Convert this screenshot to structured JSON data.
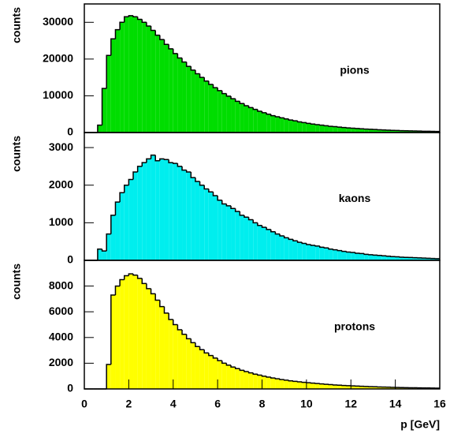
{
  "chart_data": [
    {
      "type": "histogram",
      "ylabel": "counts",
      "label": "pions",
      "color": "#00dd00",
      "bins": [
        0,
        0.2,
        0.4,
        0.6,
        0.8,
        1,
        1.2,
        1.4,
        1.6,
        1.8,
        2,
        2.2,
        2.4,
        2.6,
        2.8,
        3,
        3.2,
        3.4,
        3.6,
        3.8,
        4,
        4.2,
        4.4,
        4.6,
        4.8,
        5,
        5.2,
        5.4,
        5.6,
        5.8,
        6,
        6.2,
        6.4,
        6.6,
        6.8,
        7,
        7.2,
        7.4,
        7.6,
        7.8,
        8,
        8.2,
        8.4,
        8.6,
        8.8,
        9,
        9.2,
        9.4,
        9.6,
        9.8,
        10,
        10.2,
        10.4,
        10.6,
        10.8,
        11,
        11.2,
        11.4,
        11.6,
        11.8,
        12,
        12.2,
        12.4,
        12.6,
        12.8,
        13,
        13.2,
        13.4,
        13.6,
        13.8,
        14,
        14.2,
        14.4,
        14.6,
        14.8,
        15,
        15.2,
        15.4,
        15.6,
        15.8,
        16
      ],
      "counts": [
        0,
        0,
        0,
        2000,
        12000,
        21000,
        25500,
        28000,
        30000,
        31500,
        31800,
        31500,
        30800,
        30000,
        29000,
        27800,
        26500,
        25300,
        24000,
        22800,
        21500,
        20300,
        19200,
        18000,
        17000,
        16000,
        15000,
        14000,
        13100,
        12200,
        11400,
        10600,
        9900,
        9200,
        8500,
        7900,
        7300,
        6800,
        6300,
        5800,
        5400,
        5000,
        4600,
        4300,
        4000,
        3700,
        3400,
        3200,
        2900,
        2700,
        2500,
        2300,
        2150,
        2000,
        1850,
        1700,
        1600,
        1480,
        1370,
        1270,
        1180,
        1100,
        1020,
        950,
        880,
        820,
        760,
        700,
        650,
        600,
        560,
        520,
        480,
        450,
        420,
        390,
        360,
        340,
        320,
        300
      ],
      "xlim": [
        0,
        16
      ],
      "ylim": [
        0,
        35000
      ],
      "yticks": [
        0,
        10000,
        20000,
        30000
      ]
    },
    {
      "type": "histogram",
      "ylabel": "counts",
      "label": "kaons",
      "color": "#00eeee",
      "bins": [
        0,
        0.2,
        0.4,
        0.6,
        0.8,
        1,
        1.2,
        1.4,
        1.6,
        1.8,
        2,
        2.2,
        2.4,
        2.6,
        2.8,
        3,
        3.2,
        3.4,
        3.6,
        3.8,
        4,
        4.2,
        4.4,
        4.6,
        4.8,
        5,
        5.2,
        5.4,
        5.6,
        5.8,
        6,
        6.2,
        6.4,
        6.6,
        6.8,
        7,
        7.2,
        7.4,
        7.6,
        7.8,
        8,
        8.2,
        8.4,
        8.6,
        8.8,
        9,
        9.2,
        9.4,
        9.6,
        9.8,
        10,
        10.2,
        10.4,
        10.6,
        10.8,
        11,
        11.2,
        11.4,
        11.6,
        11.8,
        12,
        12.2,
        12.4,
        12.6,
        12.8,
        13,
        13.2,
        13.4,
        13.6,
        13.8,
        14,
        14.2,
        14.4,
        14.6,
        14.8,
        15,
        15.2,
        15.4,
        15.6,
        15.8,
        16
      ],
      "counts": [
        0,
        0,
        0,
        300,
        250,
        700,
        1200,
        1550,
        1800,
        2000,
        2150,
        2350,
        2500,
        2600,
        2700,
        2800,
        2650,
        2700,
        2680,
        2600,
        2580,
        2500,
        2400,
        2350,
        2200,
        2100,
        2000,
        1900,
        1820,
        1720,
        1600,
        1500,
        1450,
        1380,
        1300,
        1200,
        1150,
        1080,
        1000,
        930,
        880,
        820,
        760,
        700,
        650,
        600,
        560,
        520,
        480,
        450,
        420,
        400,
        380,
        350,
        330,
        300,
        280,
        260,
        240,
        220,
        210,
        190,
        180,
        160,
        150,
        140,
        130,
        120,
        110,
        100,
        95,
        85,
        80,
        75,
        70,
        65,
        60,
        55,
        50,
        45
      ],
      "xlim": [
        0,
        16
      ],
      "ylim": [
        0,
        3400
      ],
      "yticks": [
        0,
        1000,
        2000,
        3000
      ]
    },
    {
      "type": "histogram",
      "ylabel": "counts",
      "label": "protons",
      "color": "#ffff00",
      "xlabel": "p [GeV]",
      "bins": [
        0,
        0.2,
        0.4,
        0.6,
        0.8,
        1,
        1.2,
        1.4,
        1.6,
        1.8,
        2,
        2.2,
        2.4,
        2.6,
        2.8,
        3,
        3.2,
        3.4,
        3.6,
        3.8,
        4,
        4.2,
        4.4,
        4.6,
        4.8,
        5,
        5.2,
        5.4,
        5.6,
        5.8,
        6,
        6.2,
        6.4,
        6.6,
        6.8,
        7,
        7.2,
        7.4,
        7.6,
        7.8,
        8,
        8.2,
        8.4,
        8.6,
        8.8,
        9,
        9.2,
        9.4,
        9.6,
        9.8,
        10,
        10.2,
        10.4,
        10.6,
        10.8,
        11,
        11.2,
        11.4,
        11.6,
        11.8,
        12,
        12.2,
        12.4,
        12.6,
        12.8,
        13,
        13.2,
        13.4,
        13.6,
        13.8,
        14,
        14.2,
        14.4,
        14.6,
        14.8,
        15,
        15.2,
        15.4,
        15.6,
        15.8,
        16
      ],
      "counts": [
        0,
        0,
        0,
        0,
        0,
        1900,
        7300,
        8000,
        8500,
        8800,
        8950,
        8850,
        8600,
        8200,
        7800,
        7400,
        6900,
        6400,
        5900,
        5400,
        5000,
        4600,
        4250,
        3900,
        3600,
        3300,
        3050,
        2800,
        2600,
        2400,
        2200,
        2000,
        1850,
        1700,
        1580,
        1450,
        1350,
        1250,
        1150,
        1070,
        990,
        920,
        850,
        790,
        730,
        680,
        630,
        590,
        550,
        510,
        480,
        450,
        420,
        390,
        360,
        340,
        310,
        290,
        270,
        250,
        235,
        220,
        205,
        190,
        175,
        165,
        155,
        145,
        135,
        125,
        115,
        105,
        100,
        95,
        90,
        85,
        80,
        75,
        70,
        65
      ],
      "xlim": [
        0,
        16
      ],
      "ylim": [
        0,
        10000
      ],
      "yticks": [
        0,
        2000,
        4000,
        6000,
        8000,
        10000
      ],
      "xticks": [
        0,
        2,
        4,
        6,
        8,
        10,
        12,
        14,
        16
      ]
    }
  ]
}
